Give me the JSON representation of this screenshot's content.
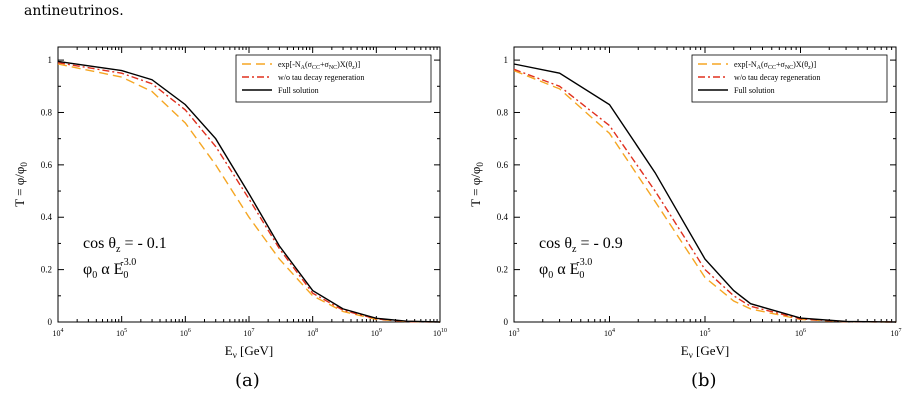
{
  "header_text": "antineutrinos.",
  "legend": {
    "attenuation_base": "exp[-N",
    "attenuation_sub_a": "A",
    "attenuation_cc": "CC",
    "attenuation_nc": "NC",
    "attenuation_z": "z",
    "without_regen": "w/o tau decay regeneration",
    "full": "Full solution"
  },
  "series_styles": [
    {
      "key": "exp",
      "color": "#f5a623",
      "dash": "9,5"
    },
    {
      "key": "woreg",
      "color": "#e0301e",
      "dash": "7,3,2,3"
    },
    {
      "key": "full",
      "color": "#000000",
      "dash": ""
    }
  ],
  "chart_data": [
    {
      "type": "line",
      "caption": "(a)",
      "xlabel": "E",
      "xlabel_sub": "ν",
      "xlabel_unit": "[GeV]",
      "ylabel": "T = φ/φ",
      "ylabel_sub": "0",
      "xscale": "log",
      "xlim": [
        10000,
        10000000000
      ],
      "ylim": [
        0,
        1.05
      ],
      "x_tick_exponents": [
        4,
        5,
        6,
        7,
        8,
        9,
        10
      ],
      "y_ticks": [
        "0",
        "0.2",
        "0.4",
        "0.6",
        "0.8",
        "1"
      ],
      "annotation_cos": "cos θ",
      "annotation_cos_sub": "z",
      "annotation_cos_value": " = - 0.1",
      "annotation_flux": "φ",
      "annotation_flux_sub": "0",
      "annotation_flux_mid": " α E",
      "annotation_flux_sub2": "0",
      "annotation_flux_sup": "-3.0",
      "series": [
        {
          "key": "exp",
          "x": [
            10000,
            100000,
            300000,
            1000000,
            3000000,
            10000000,
            30000000,
            100000000,
            300000000,
            1000000000,
            3000000000,
            10000000000
          ],
          "y": [
            0.985,
            0.935,
            0.88,
            0.76,
            0.6,
            0.4,
            0.24,
            0.1,
            0.04,
            0.01,
            0.002,
            0.0
          ]
        },
        {
          "key": "woreg",
          "x": [
            10000,
            100000,
            300000,
            1000000,
            3000000,
            10000000,
            30000000,
            100000000,
            300000000,
            1000000000,
            3000000000,
            10000000000
          ],
          "y": [
            0.99,
            0.95,
            0.91,
            0.81,
            0.67,
            0.47,
            0.28,
            0.11,
            0.045,
            0.012,
            0.002,
            0.0
          ]
        },
        {
          "key": "full",
          "x": [
            10000,
            100000,
            300000,
            1000000,
            3000000,
            10000000,
            30000000,
            100000000,
            300000000,
            1000000000,
            3000000000,
            10000000000
          ],
          "y": [
            0.995,
            0.96,
            0.925,
            0.83,
            0.7,
            0.49,
            0.29,
            0.12,
            0.05,
            0.014,
            0.003,
            0.0
          ]
        }
      ]
    },
    {
      "type": "line",
      "caption": "(b)",
      "xlabel": "E",
      "xlabel_sub": "ν",
      "xlabel_unit": "[GeV]",
      "ylabel": "T = φ/φ",
      "ylabel_sub": "0",
      "xscale": "log",
      "xlim": [
        1000,
        10000000
      ],
      "ylim": [
        0,
        1.05
      ],
      "x_tick_exponents": [
        3,
        4,
        5,
        6,
        7
      ],
      "y_ticks": [
        "0",
        "0.2",
        "0.4",
        "0.6",
        "0.8",
        "1"
      ],
      "annotation_cos": "cos θ",
      "annotation_cos_sub": "z",
      "annotation_cos_value": " = - 0.9",
      "annotation_flux": "φ",
      "annotation_flux_sub": "0",
      "annotation_flux_mid": " α E",
      "annotation_flux_sub2": "0",
      "annotation_flux_sup": "-3.0",
      "series": [
        {
          "key": "exp",
          "x": [
            1000,
            3000,
            10000,
            30000,
            100000,
            200000,
            300000,
            1000000,
            3000000,
            10000000
          ],
          "y": [
            0.96,
            0.89,
            0.72,
            0.46,
            0.17,
            0.08,
            0.05,
            0.01,
            0.001,
            0.0
          ]
        },
        {
          "key": "woreg",
          "x": [
            1000,
            3000,
            10000,
            30000,
            100000,
            200000,
            300000,
            1000000,
            3000000,
            10000000
          ],
          "y": [
            0.965,
            0.9,
            0.75,
            0.5,
            0.2,
            0.1,
            0.06,
            0.012,
            0.001,
            0.0
          ]
        },
        {
          "key": "full",
          "x": [
            1000,
            3000,
            10000,
            30000,
            100000,
            200000,
            300000,
            1000000,
            3000000,
            10000000
          ],
          "y": [
            0.985,
            0.95,
            0.83,
            0.57,
            0.24,
            0.12,
            0.07,
            0.015,
            0.002,
            0.0
          ]
        }
      ]
    }
  ]
}
